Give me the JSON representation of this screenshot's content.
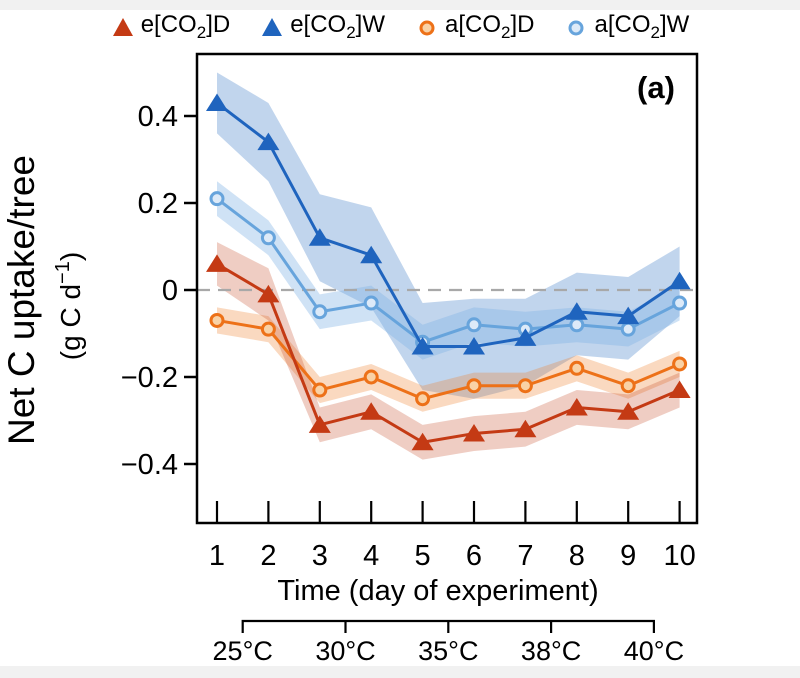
{
  "page": {
    "background": "#ffffff",
    "edge_strip_color": "#f1f1f1"
  },
  "legend": {
    "items": [
      {
        "label": "e[CO2]D",
        "label_pre": "e[CO",
        "label_sub": "2",
        "label_post": "]D",
        "marker": "triangle-filled",
        "series_index": 0
      },
      {
        "label": "e[CO2]W",
        "label_pre": "e[CO",
        "label_sub": "2",
        "label_post": "]W",
        "marker": "triangle-filled",
        "series_index": 1
      },
      {
        "label": "a[CO2]D",
        "label_pre": "a[CO",
        "label_sub": "2",
        "label_post": "]D",
        "marker": "circle-open",
        "series_index": 2
      },
      {
        "label": "a[CO2]W",
        "label_pre": "a[CO",
        "label_sub": "2",
        "label_post": "]W",
        "marker": "circle-open",
        "series_index": 3
      }
    ]
  },
  "chart_data": {
    "type": "line",
    "panel_label": "(a)",
    "x": [
      1,
      2,
      3,
      4,
      5,
      6,
      7,
      8,
      9,
      10
    ],
    "xlabel": "Time (day of experiment)",
    "ylabel": "Net C uptake/tree",
    "ylabel_units": {
      "pre": "(g C d",
      "sup": "−1",
      "post": ")"
    },
    "ylim": [
      -0.54,
      0.54
    ],
    "xlim": [
      0.6,
      10.35
    ],
    "yticks": {
      "values": [
        0.4,
        0.2,
        0,
        -0.2,
        -0.4
      ],
      "labels": [
        "0.4",
        "0.2",
        "0",
        "−0.2",
        "−0.4"
      ]
    },
    "xticks": {
      "values": [
        1,
        2,
        3,
        4,
        5,
        6,
        7,
        8,
        9,
        10
      ],
      "labels": [
        "1",
        "2",
        "3",
        "4",
        "5",
        "6",
        "7",
        "8",
        "9",
        "10"
      ]
    },
    "zero_line": {
      "value": 0,
      "style": "dashed",
      "color": "#a8a8a8"
    },
    "secondary_x_axis": {
      "positions": [
        1.5,
        3.5,
        5.5,
        7.5,
        9.5
      ],
      "labels": [
        "25°C",
        "30°C",
        "35°C",
        "38°C",
        "40°C"
      ]
    },
    "grid": false,
    "legend_position": "top",
    "series": [
      {
        "name": "e[CO2]D",
        "marker": "triangle-filled",
        "color": "#c43a14",
        "band_color": "rgba(198,76,38,0.28)",
        "values": [
          0.06,
          -0.01,
          -0.31,
          -0.28,
          -0.35,
          -0.33,
          -0.32,
          -0.27,
          -0.28,
          -0.23
        ],
        "band_hi": [
          0.11,
          0.05,
          -0.27,
          -0.24,
          -0.31,
          -0.29,
          -0.28,
          -0.23,
          -0.24,
          -0.19
        ],
        "band_lo": [
          0.01,
          -0.07,
          -0.35,
          -0.32,
          -0.39,
          -0.37,
          -0.36,
          -0.31,
          -0.32,
          -0.27
        ]
      },
      {
        "name": "e[CO2]W",
        "marker": "triangle-filled",
        "color": "#1f64be",
        "band_color": "rgba(68,129,199,0.33)",
        "values": [
          0.43,
          0.34,
          0.12,
          0.08,
          -0.13,
          -0.13,
          -0.11,
          -0.05,
          -0.06,
          0.02
        ],
        "band_hi": [
          0.5,
          0.43,
          0.22,
          0.19,
          -0.03,
          -0.02,
          -0.02,
          0.04,
          0.03,
          0.1
        ],
        "band_lo": [
          0.36,
          0.25,
          0.02,
          -0.04,
          -0.23,
          -0.25,
          -0.22,
          -0.15,
          -0.16,
          -0.06
        ]
      },
      {
        "name": "a[CO2]D",
        "marker": "circle-open",
        "color": "#ed7118",
        "marker_fill": "#f9d2a6",
        "band_color": "rgba(240,130,45,0.30)",
        "values": [
          -0.07,
          -0.09,
          -0.23,
          -0.2,
          -0.25,
          -0.22,
          -0.22,
          -0.18,
          -0.22,
          -0.17
        ],
        "band_hi": [
          -0.04,
          -0.06,
          -0.2,
          -0.17,
          -0.22,
          -0.19,
          -0.19,
          -0.15,
          -0.19,
          -0.14
        ],
        "band_lo": [
          -0.1,
          -0.12,
          -0.26,
          -0.23,
          -0.28,
          -0.25,
          -0.25,
          -0.21,
          -0.25,
          -0.2
        ]
      },
      {
        "name": "a[CO2]W",
        "marker": "circle-open",
        "color": "#67a4dc",
        "marker_fill": "#ddeaf8",
        "band_color": "rgba(130,180,230,0.38)",
        "values": [
          0.21,
          0.12,
          -0.05,
          -0.03,
          -0.12,
          -0.08,
          -0.09,
          -0.08,
          -0.09,
          -0.03
        ],
        "band_hi": [
          0.25,
          0.16,
          -0.01,
          0.01,
          -0.08,
          -0.04,
          -0.05,
          -0.04,
          -0.05,
          0.01
        ],
        "band_lo": [
          0.17,
          0.08,
          -0.09,
          -0.07,
          -0.16,
          -0.12,
          -0.13,
          -0.12,
          -0.13,
          -0.07
        ]
      }
    ]
  }
}
